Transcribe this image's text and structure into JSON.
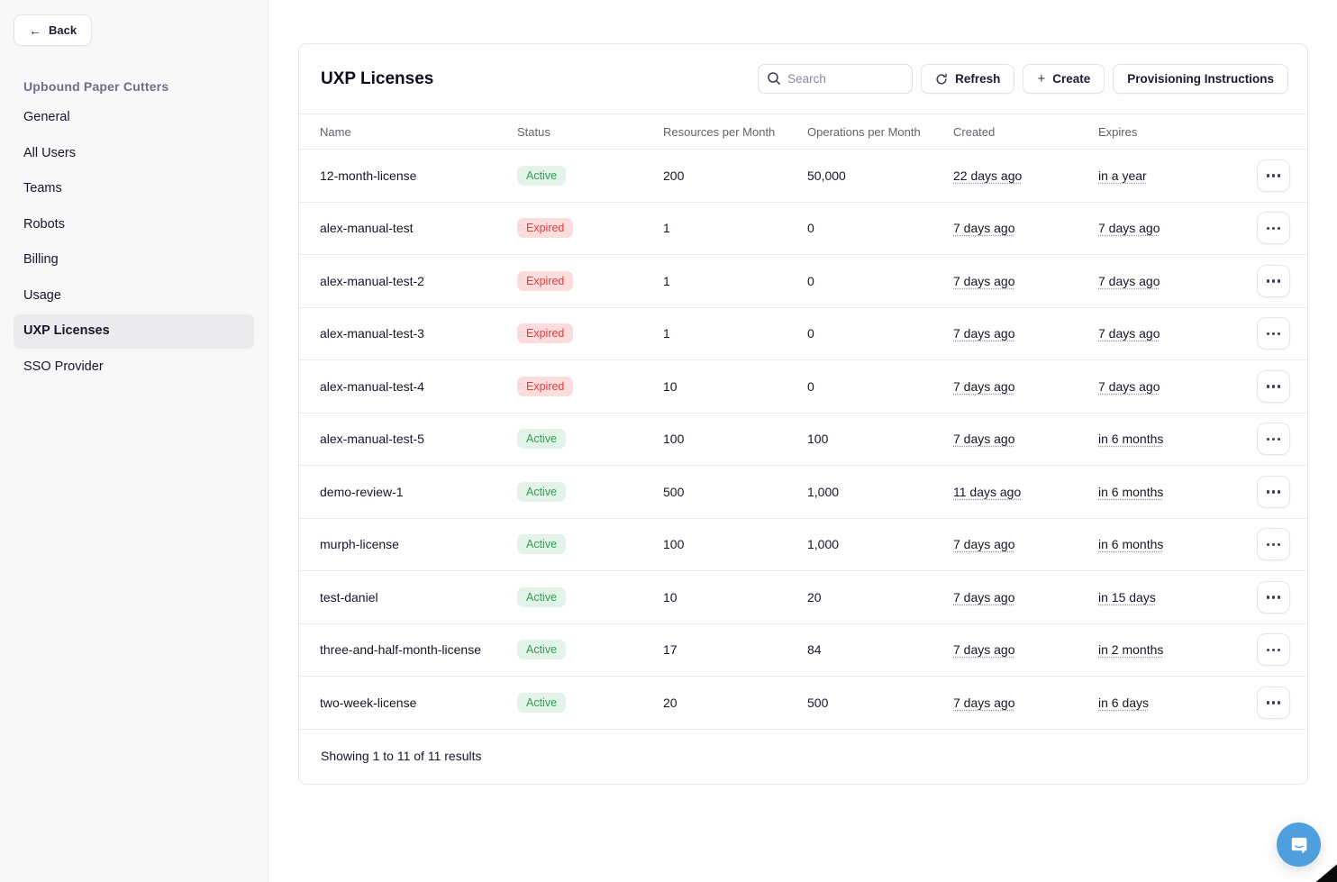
{
  "sidebar": {
    "back_label": "Back",
    "org_title": "Upbound Paper Cutters",
    "items": [
      {
        "label": "General",
        "active": false
      },
      {
        "label": "All Users",
        "active": false
      },
      {
        "label": "Teams",
        "active": false
      },
      {
        "label": "Robots",
        "active": false
      },
      {
        "label": "Billing",
        "active": false
      },
      {
        "label": "Usage",
        "active": false
      },
      {
        "label": "UXP Licenses",
        "active": true
      },
      {
        "label": "SSO Provider",
        "active": false
      }
    ]
  },
  "header": {
    "title": "UXP Licenses",
    "search_placeholder": "Search",
    "refresh_label": "Refresh",
    "create_label": "Create",
    "create_glyph": "+",
    "provisioning_label": "Provisioning Instructions"
  },
  "table": {
    "columns": [
      "Name",
      "Status",
      "Resources per Month",
      "Operations per Month",
      "Created",
      "Expires"
    ],
    "rows": [
      {
        "name": "12-month-license",
        "status": "Active",
        "resources": "200",
        "operations": "50,000",
        "created": "22 days ago",
        "expires": "in a year"
      },
      {
        "name": "alex-manual-test",
        "status": "Expired",
        "resources": "1",
        "operations": "0",
        "created": "7 days ago",
        "expires": "7 days ago"
      },
      {
        "name": "alex-manual-test-2",
        "status": "Expired",
        "resources": "1",
        "operations": "0",
        "created": "7 days ago",
        "expires": "7 days ago"
      },
      {
        "name": "alex-manual-test-3",
        "status": "Expired",
        "resources": "1",
        "operations": "0",
        "created": "7 days ago",
        "expires": "7 days ago"
      },
      {
        "name": "alex-manual-test-4",
        "status": "Expired",
        "resources": "10",
        "operations": "0",
        "created": "7 days ago",
        "expires": "7 days ago"
      },
      {
        "name": "alex-manual-test-5",
        "status": "Active",
        "resources": "100",
        "operations": "100",
        "created": "7 days ago",
        "expires": "in 6 months"
      },
      {
        "name": "demo-review-1",
        "status": "Active",
        "resources": "500",
        "operations": "1,000",
        "created": "11 days ago",
        "expires": "in 6 months"
      },
      {
        "name": "murph-license",
        "status": "Active",
        "resources": "100",
        "operations": "1,000",
        "created": "7 days ago",
        "expires": "in 6 months"
      },
      {
        "name": "test-daniel",
        "status": "Active",
        "resources": "10",
        "operations": "20",
        "created": "7 days ago",
        "expires": "in 15 days"
      },
      {
        "name": "three-and-half-month-license",
        "status": "Active",
        "resources": "17",
        "operations": "84",
        "created": "7 days ago",
        "expires": "in 2 months"
      },
      {
        "name": "two-week-license",
        "status": "Active",
        "resources": "20",
        "operations": "500",
        "created": "7 days ago",
        "expires": "in 6 days"
      }
    ],
    "footer": "Showing 1 to 11 of 11 results"
  },
  "icons": {
    "back_arrow": "left-arrow-icon",
    "search": "search-icon",
    "refresh": "refresh-icon",
    "plus": "plus-icon",
    "row_menu": "ellipsis-icon",
    "chat": "chat-bubble-icon"
  },
  "colors": {
    "active_badge_bg": "#e3f3e7",
    "active_badge_text": "#2f9e54",
    "expired_badge_bg": "#fcdcdc",
    "expired_badge_text": "#dd4040",
    "chat_launcher_blue": "#4f9edd",
    "sidebar_bg": "#f8f8f9",
    "org_title_text": "#6e6e8a"
  }
}
